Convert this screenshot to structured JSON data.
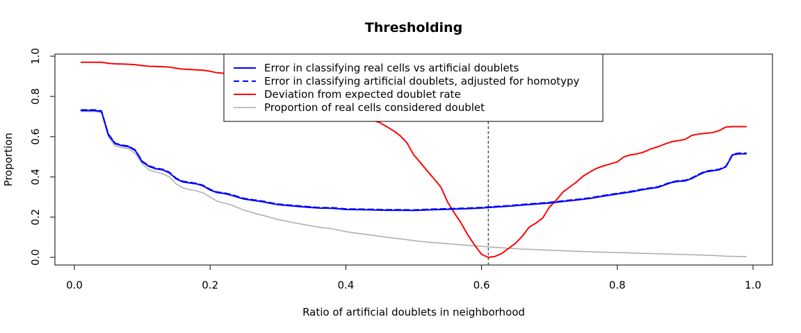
{
  "chart_data": {
    "type": "line",
    "title": "Thresholding",
    "xlabel": "Ratio of artificial doublets in neighborhood",
    "ylabel": "Proportion",
    "xlim": [
      0.0,
      1.0
    ],
    "ylim": [
      0.0,
      1.0
    ],
    "x_ticks": [
      {
        "value": 0.0,
        "label": "0.0"
      },
      {
        "value": 0.2,
        "label": "0.2"
      },
      {
        "value": 0.4,
        "label": "0.4"
      },
      {
        "value": 0.6,
        "label": "0.6"
      },
      {
        "value": 0.8,
        "label": "0.8"
      },
      {
        "value": 1.0,
        "label": "1.0"
      }
    ],
    "y_ticks": [
      {
        "value": 0.0,
        "label": "0.0"
      },
      {
        "value": 0.2,
        "label": "0.2"
      },
      {
        "value": 0.4,
        "label": "0.4"
      },
      {
        "value": 0.6,
        "label": "0.6"
      },
      {
        "value": 0.8,
        "label": "0.8"
      },
      {
        "value": 1.0,
        "label": "1.0"
      }
    ],
    "grid": false,
    "legend_position": "top-center",
    "threshold": {
      "x": 0.61,
      "color": "#555555",
      "style": "dashed"
    },
    "series": [
      {
        "name": "Error in classifying real cells vs artificial doublets",
        "color": "#0000ff",
        "style": "solid",
        "width": 2,
        "x": [
          0.01,
          0.02,
          0.03,
          0.04,
          0.05,
          0.06,
          0.07,
          0.08,
          0.09,
          0.1,
          0.11,
          0.12,
          0.13,
          0.14,
          0.15,
          0.16,
          0.17,
          0.18,
          0.19,
          0.2,
          0.21,
          0.22,
          0.23,
          0.24,
          0.25,
          0.26,
          0.27,
          0.28,
          0.29,
          0.3,
          0.32,
          0.34,
          0.36,
          0.38,
          0.4,
          0.42,
          0.44,
          0.46,
          0.48,
          0.5,
          0.52,
          0.54,
          0.56,
          0.58,
          0.6,
          0.62,
          0.64,
          0.66,
          0.68,
          0.7,
          0.72,
          0.74,
          0.76,
          0.78,
          0.8,
          0.82,
          0.84,
          0.85,
          0.86,
          0.87,
          0.88,
          0.89,
          0.9,
          0.91,
          0.92,
          0.93,
          0.94,
          0.95,
          0.96,
          0.97,
          0.98,
          0.99
        ],
        "y": [
          0.73,
          0.73,
          0.73,
          0.725,
          0.61,
          0.565,
          0.555,
          0.55,
          0.53,
          0.475,
          0.452,
          0.44,
          0.435,
          0.42,
          0.39,
          0.375,
          0.37,
          0.365,
          0.355,
          0.335,
          0.322,
          0.318,
          0.31,
          0.3,
          0.29,
          0.285,
          0.28,
          0.275,
          0.268,
          0.262,
          0.256,
          0.25,
          0.245,
          0.244,
          0.238,
          0.237,
          0.236,
          0.234,
          0.234,
          0.233,
          0.236,
          0.238,
          0.24,
          0.242,
          0.245,
          0.25,
          0.254,
          0.26,
          0.265,
          0.27,
          0.278,
          0.285,
          0.293,
          0.305,
          0.315,
          0.325,
          0.338,
          0.343,
          0.348,
          0.36,
          0.372,
          0.378,
          0.38,
          0.392,
          0.41,
          0.425,
          0.43,
          0.435,
          0.45,
          0.51,
          0.515,
          0.515
        ]
      },
      {
        "name": "Error in classifying artificial doublets, adjusted for homotypy",
        "color": "#0000ff",
        "style": "dashed",
        "width": 2,
        "x": [
          0.01,
          0.02,
          0.03,
          0.04,
          0.05,
          0.06,
          0.07,
          0.08,
          0.09,
          0.1,
          0.11,
          0.12,
          0.13,
          0.14,
          0.15,
          0.16,
          0.17,
          0.18,
          0.19,
          0.2,
          0.21,
          0.22,
          0.23,
          0.24,
          0.25,
          0.26,
          0.27,
          0.28,
          0.29,
          0.3,
          0.32,
          0.34,
          0.36,
          0.38,
          0.4,
          0.42,
          0.44,
          0.46,
          0.48,
          0.5,
          0.52,
          0.54,
          0.56,
          0.58,
          0.6,
          0.62,
          0.64,
          0.66,
          0.68,
          0.7,
          0.72,
          0.74,
          0.76,
          0.78,
          0.8,
          0.82,
          0.84,
          0.85,
          0.86,
          0.87,
          0.88,
          0.89,
          0.9,
          0.91,
          0.92,
          0.93,
          0.94,
          0.95,
          0.96,
          0.97,
          0.98,
          0.99
        ],
        "y": [
          0.733,
          0.733,
          0.733,
          0.728,
          0.613,
          0.568,
          0.558,
          0.553,
          0.533,
          0.478,
          0.455,
          0.443,
          0.438,
          0.423,
          0.393,
          0.378,
          0.373,
          0.368,
          0.358,
          0.338,
          0.325,
          0.321,
          0.313,
          0.303,
          0.293,
          0.288,
          0.283,
          0.278,
          0.271,
          0.265,
          0.259,
          0.253,
          0.248,
          0.247,
          0.241,
          0.24,
          0.239,
          0.237,
          0.237,
          0.236,
          0.239,
          0.241,
          0.243,
          0.245,
          0.248,
          0.253,
          0.257,
          0.263,
          0.268,
          0.273,
          0.281,
          0.288,
          0.296,
          0.308,
          0.318,
          0.328,
          0.341,
          0.346,
          0.351,
          0.363,
          0.375,
          0.381,
          0.383,
          0.395,
          0.413,
          0.428,
          0.433,
          0.438,
          0.453,
          0.513,
          0.518,
          0.518
        ]
      },
      {
        "name": "Deviation from expected doublet rate",
        "color": "#ff0000",
        "style": "solid",
        "width": 2,
        "x": [
          0.01,
          0.02,
          0.03,
          0.04,
          0.05,
          0.06,
          0.07,
          0.08,
          0.09,
          0.1,
          0.11,
          0.12,
          0.13,
          0.14,
          0.15,
          0.16,
          0.17,
          0.18,
          0.19,
          0.2,
          0.21,
          0.22,
          0.45,
          0.46,
          0.47,
          0.48,
          0.49,
          0.5,
          0.51,
          0.52,
          0.53,
          0.54,
          0.55,
          0.56,
          0.57,
          0.58,
          0.59,
          0.6,
          0.61,
          0.62,
          0.63,
          0.64,
          0.65,
          0.66,
          0.67,
          0.68,
          0.69,
          0.7,
          0.71,
          0.72,
          0.73,
          0.74,
          0.75,
          0.76,
          0.77,
          0.78,
          0.79,
          0.8,
          0.81,
          0.82,
          0.83,
          0.84,
          0.85,
          0.86,
          0.87,
          0.88,
          0.89,
          0.9,
          0.91,
          0.92,
          0.93,
          0.94,
          0.95,
          0.96,
          0.97,
          0.98,
          0.99
        ],
        "y": [
          0.97,
          0.97,
          0.97,
          0.97,
          0.965,
          0.962,
          0.961,
          0.96,
          0.958,
          0.953,
          0.95,
          0.949,
          0.948,
          0.946,
          0.94,
          0.936,
          0.934,
          0.932,
          0.93,
          0.925,
          0.918,
          0.915,
          0.67,
          0.65,
          0.63,
          0.605,
          0.57,
          0.51,
          0.47,
          0.43,
          0.39,
          0.35,
          0.275,
          0.22,
          0.17,
          0.11,
          0.06,
          0.015,
          0.0,
          0.005,
          0.02,
          0.045,
          0.07,
          0.105,
          0.15,
          0.17,
          0.195,
          0.25,
          0.285,
          0.325,
          0.35,
          0.375,
          0.405,
          0.425,
          0.443,
          0.455,
          0.465,
          0.475,
          0.5,
          0.51,
          0.515,
          0.525,
          0.54,
          0.55,
          0.563,
          0.575,
          0.58,
          0.587,
          0.607,
          0.613,
          0.617,
          0.62,
          0.63,
          0.648,
          0.65,
          0.65,
          0.65
        ]
      },
      {
        "name": "Proportion of real cells considered doublet",
        "color": "#aaaaaa",
        "style": "solid",
        "width": 1.5,
        "x": [
          0.01,
          0.02,
          0.03,
          0.04,
          0.05,
          0.06,
          0.07,
          0.08,
          0.09,
          0.1,
          0.11,
          0.12,
          0.13,
          0.14,
          0.15,
          0.16,
          0.17,
          0.18,
          0.19,
          0.2,
          0.21,
          0.22,
          0.23,
          0.24,
          0.25,
          0.26,
          0.27,
          0.28,
          0.29,
          0.3,
          0.32,
          0.34,
          0.36,
          0.38,
          0.4,
          0.42,
          0.44,
          0.46,
          0.48,
          0.5,
          0.52,
          0.54,
          0.56,
          0.58,
          0.6,
          0.62,
          0.64,
          0.66,
          0.68,
          0.7,
          0.72,
          0.74,
          0.76,
          0.78,
          0.8,
          0.82,
          0.84,
          0.86,
          0.88,
          0.9,
          0.92,
          0.94,
          0.96,
          0.98,
          0.99
        ],
        "y": [
          0.725,
          0.725,
          0.725,
          0.72,
          0.6,
          0.553,
          0.545,
          0.54,
          0.515,
          0.465,
          0.435,
          0.425,
          0.415,
          0.4,
          0.365,
          0.345,
          0.337,
          0.33,
          0.32,
          0.3,
          0.28,
          0.27,
          0.262,
          0.248,
          0.235,
          0.225,
          0.215,
          0.207,
          0.198,
          0.188,
          0.175,
          0.162,
          0.15,
          0.142,
          0.128,
          0.118,
          0.11,
          0.1,
          0.092,
          0.083,
          0.076,
          0.071,
          0.065,
          0.06,
          0.055,
          0.05,
          0.045,
          0.041,
          0.039,
          0.036,
          0.033,
          0.03,
          0.028,
          0.026,
          0.024,
          0.022,
          0.02,
          0.018,
          0.016,
          0.014,
          0.012,
          0.01,
          0.006,
          0.004,
          0.004
        ]
      }
    ]
  }
}
